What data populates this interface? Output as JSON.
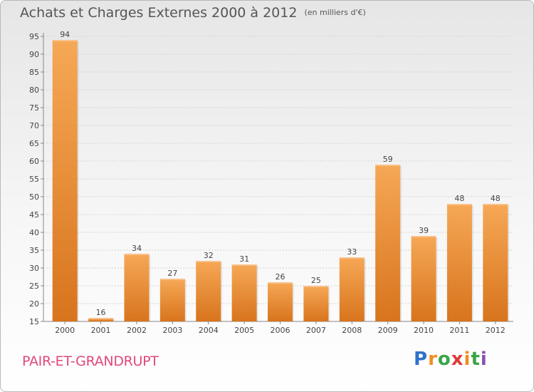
{
  "header": {
    "title": "Achats et Charges Externes 2000 à 2012",
    "subtitle": "(en milliers d'€)"
  },
  "location": "PAIR-ET-GRANDRUPT",
  "logo": {
    "letters": [
      "P",
      "r",
      "o",
      "x",
      "i",
      "t",
      "i"
    ],
    "colors": [
      "#2f73c9",
      "#f08c1e",
      "#3aa648",
      "#e03a3a",
      "#f08c1e",
      "#3aa648",
      "#8a4fb0"
    ]
  },
  "chart_data": {
    "type": "bar",
    "title": "Achats et Charges Externes 2000 à 2012",
    "subtitle": "(en milliers d'€)",
    "xlabel": "",
    "ylabel": "",
    "categories": [
      "2000",
      "2001",
      "2002",
      "2003",
      "2004",
      "2005",
      "2006",
      "2007",
      "2008",
      "2009",
      "2010",
      "2011",
      "2012"
    ],
    "values": [
      94,
      16,
      34,
      27,
      32,
      31,
      26,
      25,
      33,
      59,
      39,
      48,
      48
    ],
    "ylim": [
      15,
      95
    ],
    "yticks": [
      15,
      20,
      25,
      30,
      35,
      40,
      45,
      50,
      55,
      60,
      65,
      70,
      75,
      80,
      85,
      90,
      95
    ],
    "grid": true,
    "bar_color": "#f0a04a"
  }
}
